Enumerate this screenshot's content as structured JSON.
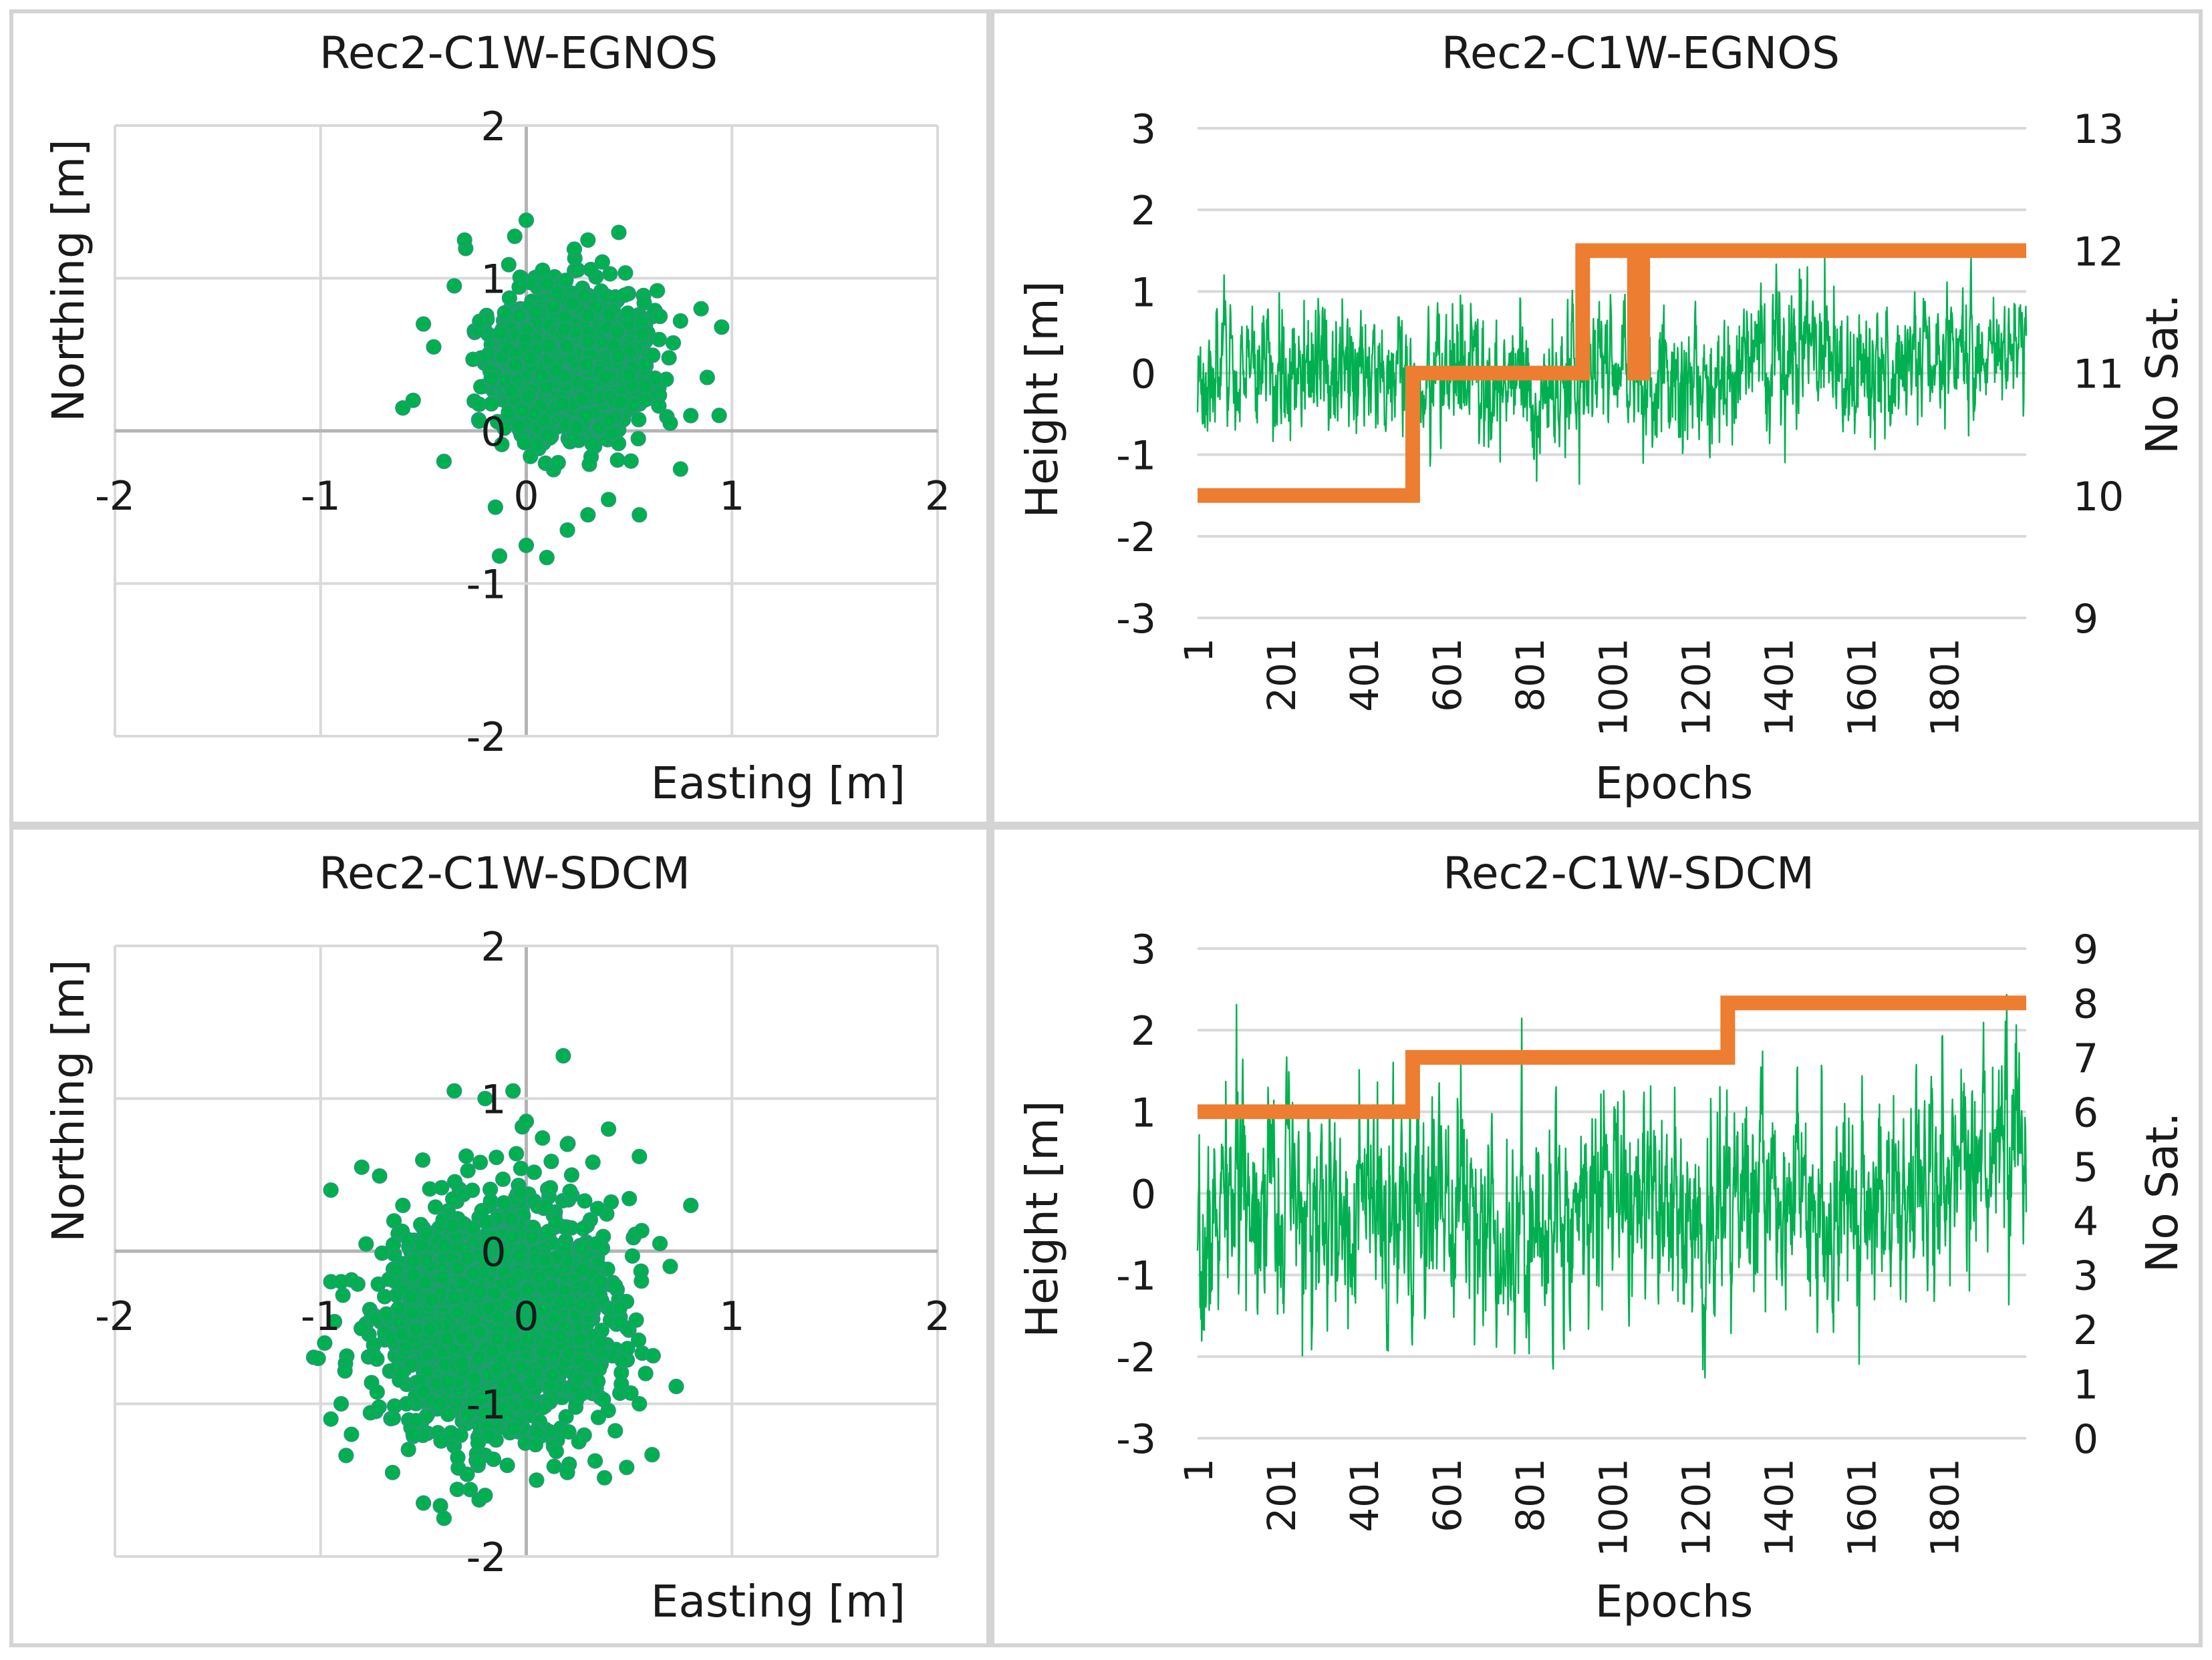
{
  "chart_data": [
    {
      "type": "scatter",
      "title": "Rec2-C1W-EGNOS",
      "xlabel": "Easting [m]",
      "ylabel": "Northing [m]",
      "xlim": [
        -2,
        2
      ],
      "ylim": [
        -2,
        2
      ],
      "xticks": [
        "-2",
        "-1",
        "0",
        "1",
        "2"
      ],
      "yticks": [
        "2",
        "1",
        "0",
        "-1",
        "-2"
      ],
      "grid": true,
      "marker_color": "#00b050",
      "cloud": {
        "count": 2000,
        "center": [
          0.2,
          0.45
        ],
        "sd": [
          0.16,
          0.22
        ],
        "seed": 11
      },
      "points": [
        [
          -0.6,
          0.15
        ],
        [
          -0.55,
          0.2
        ],
        [
          -0.4,
          -0.2
        ],
        [
          -0.45,
          0.55
        ],
        [
          0.45,
          1.3
        ],
        [
          0.65,
          0.75
        ],
        [
          0.75,
          0.72
        ],
        [
          0.85,
          0.8
        ],
        [
          0.95,
          0.68
        ],
        [
          0.88,
          0.35
        ],
        [
          0.75,
          -0.25
        ],
        [
          0.55,
          -0.55
        ],
        [
          0.3,
          -0.55
        ],
        [
          0.1,
          -0.83
        ],
        [
          0.0,
          -0.75
        ],
        [
          -0.13,
          -0.82
        ],
        [
          0.2,
          -0.65
        ],
        [
          0.4,
          -0.45
        ],
        [
          -0.3,
          1.25
        ],
        [
          0.0,
          1.38
        ],
        [
          0.7,
          0.05
        ],
        [
          0.8,
          0.1
        ],
        [
          -0.5,
          0.7
        ],
        [
          -0.35,
          0.95
        ],
        [
          0.3,
          1.25
        ],
        [
          -0.15,
          -0.5
        ]
      ]
    },
    {
      "type": "line",
      "title": "Rec2-C1W-EGNOS",
      "xlabel": "Epochs",
      "ylabel": "Height [m]",
      "y2label": "No Sat.",
      "xlim": [
        1,
        2000
      ],
      "ylim": [
        -3,
        3
      ],
      "y2lim": [
        9,
        13
      ],
      "xticks": [
        "1",
        "201",
        "401",
        "601",
        "801",
        "1001",
        "1201",
        "1401",
        "1601",
        "1801"
      ],
      "yticks": [
        "3",
        "2",
        "1",
        "0",
        "-1",
        "-2",
        "-3"
      ],
      "y2ticks": [
        "13",
        "12",
        "11",
        "10",
        "9"
      ],
      "grid": true,
      "height_color": "#00b050",
      "sat_color": "#ed7d31",
      "height_series": {
        "epochs": 2000,
        "trend_x": [
          1,
          200,
          400,
          520,
          600,
          800,
          1000,
          1200,
          1400,
          1600,
          1800,
          2000
        ],
        "trend_y": [
          0.05,
          0.0,
          0.0,
          -0.25,
          0.05,
          -0.25,
          0.1,
          -0.2,
          0.25,
          0.1,
          0.3,
          0.45
        ],
        "noise_sd": 0.33,
        "seed": 3
      },
      "sat_series": {
        "x": [
          1,
          520,
          520,
          930,
          930,
          1055,
          1055,
          1075,
          1075,
          2000
        ],
        "y": [
          10,
          10,
          11,
          11,
          12,
          12,
          11,
          11,
          12,
          12
        ]
      }
    },
    {
      "type": "scatter",
      "title": "Rec2-C1W-SDCM",
      "xlabel": "Easting [m]",
      "ylabel": "Northing [m]",
      "xlim": [
        -2,
        2
      ],
      "ylim": [
        -2,
        2
      ],
      "xticks": [
        "-2",
        "-1",
        "0",
        "1",
        "2"
      ],
      "yticks": [
        "2",
        "1",
        "0",
        "-1",
        "-2"
      ],
      "grid": true,
      "marker_color": "#00b050",
      "cloud": {
        "count": 2000,
        "center": [
          -0.15,
          -0.45
        ],
        "sd": [
          0.27,
          0.37
        ],
        "seed": 29
      },
      "points": [
        [
          0.18,
          1.28
        ],
        [
          -0.35,
          1.05
        ],
        [
          -0.2,
          1.0
        ],
        [
          0.0,
          0.85
        ],
        [
          0.2,
          0.7
        ],
        [
          0.4,
          0.8
        ],
        [
          0.55,
          0.62
        ],
        [
          0.8,
          0.3
        ],
        [
          0.65,
          0.05
        ],
        [
          0.7,
          -0.1
        ],
        [
          0.55,
          -1.0
        ],
        [
          0.2,
          -1.45
        ],
        [
          0.05,
          -1.5
        ],
        [
          -0.2,
          -1.6
        ],
        [
          -0.4,
          -1.75
        ],
        [
          -0.5,
          -1.65
        ],
        [
          -0.65,
          -1.45
        ],
        [
          -0.85,
          -1.2
        ],
        [
          -0.95,
          -1.1
        ],
        [
          -0.9,
          -1.0
        ],
        [
          -0.95,
          -0.2
        ],
        [
          -0.9,
          -0.2
        ],
        [
          -0.8,
          0.55
        ],
        [
          -0.6,
          0.3
        ],
        [
          -0.95,
          0.4
        ],
        [
          -0.55,
          -1.2
        ]
      ]
    },
    {
      "type": "line",
      "title": "Rec2-C1W-SDCM",
      "xlabel": "Epochs",
      "ylabel": "Height [m]",
      "y2label": "No Sat.",
      "xlim": [
        1,
        2000
      ],
      "ylim": [
        -3,
        3
      ],
      "y2lim": [
        0,
        9
      ],
      "xticks": [
        "1",
        "201",
        "401",
        "601",
        "801",
        "1001",
        "1201",
        "1401",
        "1601",
        "1801"
      ],
      "yticks": [
        "3",
        "2",
        "1",
        "0",
        "-1",
        "-2",
        "-3"
      ],
      "y2ticks": [
        "9",
        "8",
        "7",
        "6",
        "5",
        "4",
        "3",
        "2",
        "1",
        "0"
      ],
      "grid": true,
      "height_color": "#00b050",
      "sat_color": "#ed7d31",
      "height_series": {
        "epochs": 2000,
        "trend_x": [
          1,
          30,
          100,
          200,
          300,
          400,
          500,
          600,
          700,
          800,
          900,
          1000,
          1100,
          1200,
          1300,
          1400,
          1500,
          1600,
          1700,
          1800,
          1900,
          2000
        ],
        "trend_y": [
          -1.5,
          -0.5,
          0.1,
          0.0,
          -0.5,
          -0.2,
          -0.6,
          0.3,
          -0.3,
          -0.5,
          -0.2,
          0.1,
          -0.4,
          -0.5,
          -0.1,
          0.2,
          -0.2,
          0.0,
          -0.2,
          0.3,
          0.6,
          0.7
        ],
        "noise_sd": 0.55,
        "seed": 7
      },
      "sat_series": {
        "x": [
          1,
          520,
          520,
          1280,
          1280,
          2000
        ],
        "y": [
          6,
          6,
          7,
          7,
          8,
          8
        ]
      }
    }
  ]
}
